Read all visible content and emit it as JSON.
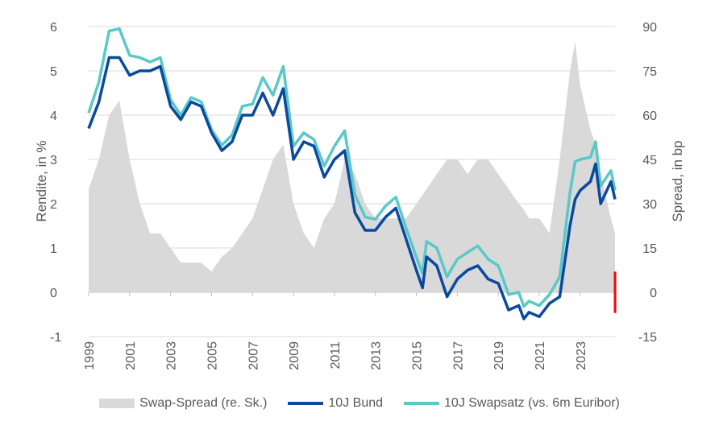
{
  "chart_data": {
    "type": "line",
    "title": "",
    "xlabel": "",
    "ylabel": "Rendite, in %",
    "y2label": "Spread, in bp",
    "xlim": [
      1999,
      2024.7
    ],
    "ylim": [
      -1,
      6
    ],
    "y2lim": [
      -15,
      90
    ],
    "x_ticks": [
      "1999",
      "2001",
      "2003",
      "2005",
      "2007",
      "2009",
      "2011",
      "2013",
      "2015",
      "2017",
      "2019",
      "2021",
      "2023"
    ],
    "y_ticks": [
      "-1",
      "0",
      "1",
      "2",
      "3",
      "4",
      "5",
      "6"
    ],
    "y2_ticks": [
      "-15",
      "0",
      "15",
      "30",
      "45",
      "60",
      "75",
      "90"
    ],
    "grid": "horizontal",
    "legend_position": "bottom",
    "x": [
      1999.0,
      1999.5,
      2000.0,
      2000.5,
      2001.0,
      2001.5,
      2002.0,
      2002.5,
      2003.0,
      2003.5,
      2004.0,
      2004.5,
      2005.0,
      2005.5,
      2006.0,
      2006.5,
      2007.0,
      2007.5,
      2008.0,
      2008.5,
      2009.0,
      2009.5,
      2010.0,
      2010.5,
      2011.0,
      2011.5,
      2012.0,
      2012.5,
      2013.0,
      2013.5,
      2014.0,
      2014.5,
      2015.0,
      2015.3,
      2015.5,
      2016.0,
      2016.5,
      2017.0,
      2017.5,
      2018.0,
      2018.5,
      2019.0,
      2019.5,
      2020.0,
      2020.25,
      2020.5,
      2021.0,
      2021.5,
      2022.0,
      2022.5,
      2022.75,
      2023.0,
      2023.5,
      2023.75,
      2024.0,
      2024.5,
      2024.7
    ],
    "series": [
      {
        "name": "Swap-Spread (re. Sk.)",
        "type": "area",
        "axis": "right",
        "color": "#d9d9d9",
        "values": [
          35,
          45,
          60,
          65,
          45,
          30,
          20,
          20,
          15,
          10,
          10,
          10,
          7,
          12,
          15,
          20,
          25,
          35,
          45,
          50,
          30,
          20,
          15,
          25,
          30,
          45,
          40,
          30,
          25,
          25,
          25,
          25,
          30,
          33,
          35,
          40,
          45,
          45,
          40,
          45,
          45,
          40,
          35,
          30,
          28,
          25,
          25,
          20,
          45,
          75,
          85,
          70,
          55,
          50,
          40,
          25,
          20
        ]
      },
      {
        "name": "10J Bund",
        "type": "line",
        "axis": "left",
        "color": "#0a4a9e",
        "values": [
          3.7,
          4.3,
          5.3,
          5.3,
          4.9,
          5.0,
          5.0,
          5.1,
          4.2,
          3.9,
          4.3,
          4.2,
          3.6,
          3.2,
          3.4,
          4.0,
          4.0,
          4.5,
          4.0,
          4.6,
          3.0,
          3.4,
          3.3,
          2.6,
          3.0,
          3.2,
          1.8,
          1.4,
          1.4,
          1.7,
          1.9,
          1.2,
          0.5,
          0.1,
          0.8,
          0.6,
          -0.1,
          0.3,
          0.5,
          0.6,
          0.3,
          0.2,
          -0.4,
          -0.3,
          -0.6,
          -0.45,
          -0.55,
          -0.25,
          -0.1,
          1.5,
          2.1,
          2.3,
          2.5,
          2.9,
          2.0,
          2.5,
          2.1
        ]
      },
      {
        "name": "10J Swapsatz (vs. 6m Euribor)",
        "type": "line",
        "axis": "left",
        "color": "#5bc8c8",
        "values": [
          4.05,
          4.75,
          5.9,
          5.95,
          5.35,
          5.3,
          5.2,
          5.3,
          4.35,
          4.0,
          4.4,
          4.3,
          3.67,
          3.32,
          3.55,
          4.2,
          4.25,
          4.85,
          4.45,
          5.1,
          3.3,
          3.6,
          3.45,
          2.85,
          3.3,
          3.65,
          2.2,
          1.7,
          1.65,
          1.95,
          2.15,
          1.45,
          0.8,
          0.43,
          1.15,
          1.0,
          0.35,
          0.75,
          0.9,
          1.05,
          0.75,
          0.6,
          -0.05,
          0.0,
          -0.32,
          -0.2,
          -0.3,
          -0.05,
          0.35,
          2.25,
          2.95,
          3.0,
          3.05,
          3.4,
          2.4,
          2.75,
          2.3
        ]
      }
    ],
    "annotation": {
      "type": "red-marker",
      "axis": "right",
      "x": 2024.7,
      "range": [
        -7,
        7
      ],
      "color": "#ff0000"
    }
  }
}
